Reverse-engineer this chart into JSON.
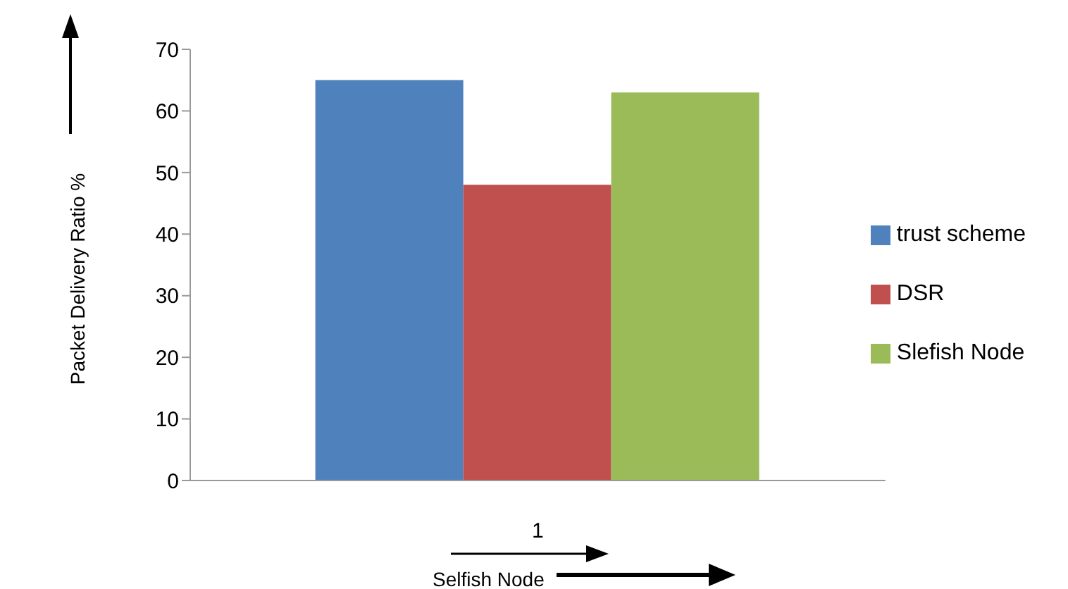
{
  "chart_data": {
    "type": "bar",
    "ylabel": "Packet Delivery Ratio %",
    "xlabel": "Selfish Node",
    "categories": [
      "1"
    ],
    "series": [
      {
        "name": "trust scheme",
        "color": "#4f81bd",
        "values": [
          65
        ]
      },
      {
        "name": "DSR",
        "color": "#c0504d",
        "values": [
          48
        ]
      },
      {
        "name": "Slefish Node",
        "color": "#9bbb59",
        "values": [
          63
        ]
      }
    ],
    "ylim": [
      0,
      70
    ],
    "yticks": [
      0,
      10,
      20,
      30,
      40,
      50,
      60,
      70
    ],
    "grid": false,
    "legend": "right"
  }
}
